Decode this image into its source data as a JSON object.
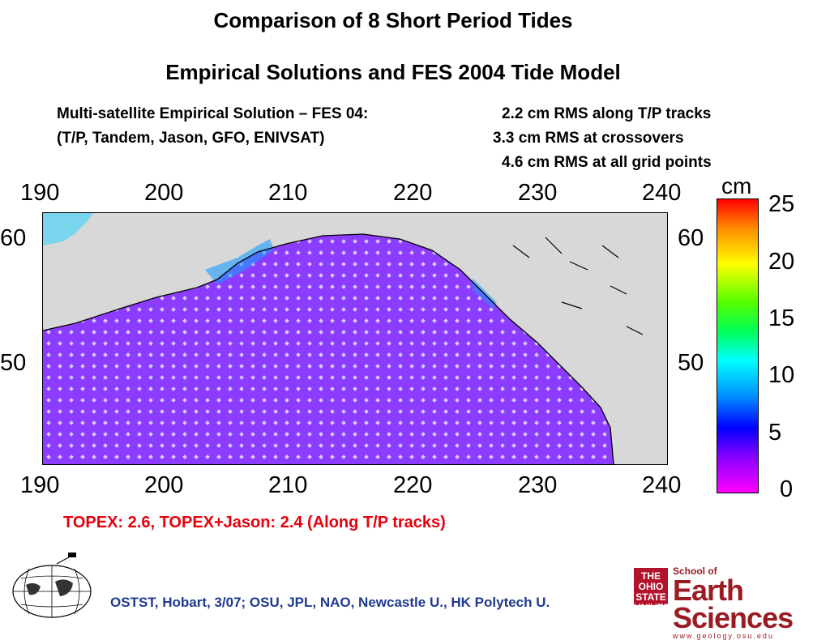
{
  "titles": {
    "line1": "Comparison of 8 Short Period Tides",
    "line2": "Empirical Solutions and FES 2004 Tide Model"
  },
  "stats": {
    "left1": "Multi-satellite Empirical Solution – FES 04:",
    "left2": "(T/P, Tandem, Jason, GFO, ENIVSAT)",
    "right1": "2.2 cm RMS along T/P tracks",
    "right2": "3.3 cm RMS at crossovers",
    "right3": "4.6 cm RMS at all grid points"
  },
  "chart_data": {
    "type": "heatmap",
    "x_ticks": [
      "190",
      "200",
      "210",
      "220",
      "230",
      "240"
    ],
    "y_ticks": [
      "60",
      "50"
    ],
    "xlim": [
      190,
      240
    ],
    "ylim": [
      42,
      64
    ],
    "colorbar": {
      "unit": "cm",
      "ticks": [
        "25",
        "20",
        "15",
        "10",
        "5",
        "0"
      ],
      "range": [
        0,
        25
      ],
      "colors": [
        "#ff00ff",
        "#0000ff",
        "#00ffff",
        "#00ff00",
        "#ffff00",
        "#ff0000"
      ]
    },
    "field_color": "#8c3cff",
    "land_color": "#d8d8d8"
  },
  "notes": {
    "topex": "TOPEX:  2.6,    TOPEX+Jason: 2.4 (Along T/P tracks)"
  },
  "footer": {
    "credit": "OSTST, Hobart, 3/07; OSU, JPL, NAO, Newcastle U., HK Polytech U."
  },
  "logos": {
    "osu": "THE OHIO STATE UNIVERSITY",
    "school_top": "School of",
    "school_main": "Earth Sciences",
    "school_url": "www.geology.osu.edu"
  }
}
